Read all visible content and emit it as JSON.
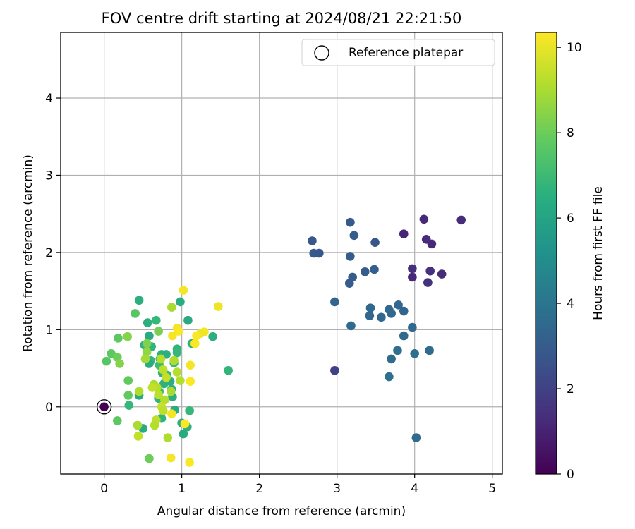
{
  "chart_data": {
    "type": "scatter",
    "title": "FOV centre drift starting at 2024/08/21 22:21:50",
    "xlabel": "Angular distance from reference (arcmin)",
    "ylabel": "Rotation from reference (arcmin)",
    "xlim": [
      -0.56,
      5.13
    ],
    "ylim": [
      -0.87,
      4.85
    ],
    "xticks": [
      0,
      1,
      2,
      3,
      4,
      5
    ],
    "yticks": [
      0,
      1,
      2,
      3,
      4
    ],
    "grid": true,
    "legend": {
      "position": "top-right",
      "entries": [
        {
          "label": "Reference platepar",
          "marker": "open-circle"
        }
      ]
    },
    "colorbar": {
      "label": "Hours from first FF file",
      "colormap": "viridis",
      "range": [
        0,
        10.35
      ],
      "ticks": [
        0,
        2,
        4,
        6,
        8,
        10
      ]
    },
    "reference_point": {
      "x": 0,
      "y": 0
    },
    "points": [
      {
        "x": 0.0,
        "y": 0.0,
        "c": 0.0
      },
      {
        "x": 4.12,
        "y": 2.43,
        "c": 1.2
      },
      {
        "x": 4.6,
        "y": 2.42,
        "c": 1.3
      },
      {
        "x": 3.86,
        "y": 2.24,
        "c": 1.1
      },
      {
        "x": 4.15,
        "y": 2.17,
        "c": 1.3
      },
      {
        "x": 4.22,
        "y": 2.11,
        "c": 1.2
      },
      {
        "x": 3.97,
        "y": 1.79,
        "c": 1.4
      },
      {
        "x": 4.2,
        "y": 1.76,
        "c": 1.5
      },
      {
        "x": 4.35,
        "y": 1.72,
        "c": 1.3
      },
      {
        "x": 3.97,
        "y": 1.68,
        "c": 1.2
      },
      {
        "x": 4.17,
        "y": 1.61,
        "c": 1.5
      },
      {
        "x": 2.97,
        "y": 0.47,
        "c": 2.0
      },
      {
        "x": 2.68,
        "y": 2.15,
        "c": 2.8
      },
      {
        "x": 3.17,
        "y": 2.39,
        "c": 2.9
      },
      {
        "x": 3.22,
        "y": 2.22,
        "c": 3.0
      },
      {
        "x": 3.49,
        "y": 2.13,
        "c": 2.8
      },
      {
        "x": 2.7,
        "y": 1.99,
        "c": 2.9
      },
      {
        "x": 2.77,
        "y": 1.99,
        "c": 2.8
      },
      {
        "x": 3.17,
        "y": 1.95,
        "c": 3.0
      },
      {
        "x": 3.48,
        "y": 1.78,
        "c": 3.1
      },
      {
        "x": 3.36,
        "y": 1.75,
        "c": 3.0
      },
      {
        "x": 3.2,
        "y": 1.68,
        "c": 3.0
      },
      {
        "x": 3.16,
        "y": 1.6,
        "c": 3.0
      },
      {
        "x": 2.97,
        "y": 1.36,
        "c": 3.3
      },
      {
        "x": 3.79,
        "y": 1.32,
        "c": 3.4
      },
      {
        "x": 3.43,
        "y": 1.28,
        "c": 3.5
      },
      {
        "x": 3.67,
        "y": 1.26,
        "c": 3.5
      },
      {
        "x": 3.86,
        "y": 1.24,
        "c": 3.3
      },
      {
        "x": 3.7,
        "y": 1.21,
        "c": 3.4
      },
      {
        "x": 3.42,
        "y": 1.18,
        "c": 3.5
      },
      {
        "x": 3.57,
        "y": 1.16,
        "c": 3.4
      },
      {
        "x": 3.18,
        "y": 1.05,
        "c": 3.6
      },
      {
        "x": 3.97,
        "y": 1.03,
        "c": 3.5
      },
      {
        "x": 3.86,
        "y": 0.92,
        "c": 3.6
      },
      {
        "x": 3.78,
        "y": 0.73,
        "c": 3.7
      },
      {
        "x": 4.19,
        "y": 0.73,
        "c": 3.6
      },
      {
        "x": 4.0,
        "y": 0.69,
        "c": 3.7
      },
      {
        "x": 3.7,
        "y": 0.62,
        "c": 3.6
      },
      {
        "x": 3.67,
        "y": 0.39,
        "c": 3.8
      },
      {
        "x": 4.02,
        "y": -0.4,
        "c": 3.6
      },
      {
        "x": 0.45,
        "y": 1.38,
        "c": 6.5
      },
      {
        "x": 0.98,
        "y": 1.36,
        "c": 6.4
      },
      {
        "x": 1.08,
        "y": 1.12,
        "c": 6.3
      },
      {
        "x": 0.56,
        "y": 1.09,
        "c": 6.5
      },
      {
        "x": 0.67,
        "y": 1.12,
        "c": 6.9
      },
      {
        "x": 0.58,
        "y": 0.92,
        "c": 6.3
      },
      {
        "x": 1.4,
        "y": 0.91,
        "c": 6.5
      },
      {
        "x": 0.52,
        "y": 0.8,
        "c": 6.6
      },
      {
        "x": 1.13,
        "y": 0.82,
        "c": 6.6
      },
      {
        "x": 0.61,
        "y": 0.78,
        "c": 6.7
      },
      {
        "x": 0.94,
        "y": 0.75,
        "c": 6.7
      },
      {
        "x": 0.74,
        "y": 0.68,
        "c": 6.6
      },
      {
        "x": 0.8,
        "y": 0.68,
        "c": 6.5
      },
      {
        "x": 0.94,
        "y": 0.7,
        "c": 6.9
      },
      {
        "x": 0.6,
        "y": 0.6,
        "c": 6.9
      },
      {
        "x": 0.72,
        "y": 0.62,
        "c": 6.6
      },
      {
        "x": 0.58,
        "y": 0.56,
        "c": 6.4
      },
      {
        "x": 0.71,
        "y": 0.54,
        "c": 7.1
      },
      {
        "x": 0.9,
        "y": 0.57,
        "c": 7.0
      },
      {
        "x": 1.6,
        "y": 0.47,
        "c": 6.8
      },
      {
        "x": 0.75,
        "y": 0.44,
        "c": 6.6
      },
      {
        "x": 0.81,
        "y": 0.41,
        "c": 6.9
      },
      {
        "x": 0.85,
        "y": 0.33,
        "c": 6.5
      },
      {
        "x": 0.77,
        "y": 0.3,
        "c": 6.6
      },
      {
        "x": 0.87,
        "y": 0.23,
        "c": 6.6
      },
      {
        "x": 0.71,
        "y": 0.2,
        "c": 6.9
      },
      {
        "x": 0.45,
        "y": 0.15,
        "c": 6.3
      },
      {
        "x": 0.88,
        "y": 0.13,
        "c": 6.5
      },
      {
        "x": 0.7,
        "y": 0.11,
        "c": 6.7
      },
      {
        "x": 0.32,
        "y": 0.02,
        "c": 6.9
      },
      {
        "x": 0.91,
        "y": -0.04,
        "c": 6.4
      },
      {
        "x": 1.1,
        "y": -0.05,
        "c": 6.9
      },
      {
        "x": 0.74,
        "y": -0.15,
        "c": 6.7
      },
      {
        "x": 1.0,
        "y": -0.21,
        "c": 6.5
      },
      {
        "x": 1.07,
        "y": -0.26,
        "c": 6.5
      },
      {
        "x": 0.5,
        "y": -0.28,
        "c": 6.4
      },
      {
        "x": 1.02,
        "y": -0.35,
        "c": 6.3
      },
      {
        "x": 0.18,
        "y": 0.89,
        "c": 7.7
      },
      {
        "x": 0.4,
        "y": 1.21,
        "c": 7.6
      },
      {
        "x": 0.3,
        "y": 0.91,
        "c": 8.4
      },
      {
        "x": 0.09,
        "y": 0.69,
        "c": 7.7
      },
      {
        "x": 0.17,
        "y": 0.64,
        "c": 8.0
      },
      {
        "x": 0.2,
        "y": 0.56,
        "c": 8.4
      },
      {
        "x": 0.03,
        "y": 0.59,
        "c": 7.6
      },
      {
        "x": 0.31,
        "y": 0.34,
        "c": 7.8
      },
      {
        "x": 0.31,
        "y": 0.15,
        "c": 7.8
      },
      {
        "x": 0.17,
        "y": -0.18,
        "c": 7.7
      },
      {
        "x": 0.58,
        "y": -0.67,
        "c": 8.0
      },
      {
        "x": 0.7,
        "y": 0.98,
        "c": 8.2
      },
      {
        "x": 0.55,
        "y": 0.71,
        "c": 8.6
      },
      {
        "x": 0.55,
        "y": 0.82,
        "c": 8.3
      },
      {
        "x": 0.87,
        "y": 1.29,
        "c": 9.0
      },
      {
        "x": 0.73,
        "y": 0.62,
        "c": 9.2
      },
      {
        "x": 0.9,
        "y": 0.6,
        "c": 9.1
      },
      {
        "x": 0.76,
        "y": 0.48,
        "c": 9.3
      },
      {
        "x": 0.94,
        "y": 0.45,
        "c": 9.2
      },
      {
        "x": 0.8,
        "y": 0.38,
        "c": 9.4
      },
      {
        "x": 0.98,
        "y": 0.34,
        "c": 9.2
      },
      {
        "x": 0.64,
        "y": 0.29,
        "c": 9.0
      },
      {
        "x": 0.68,
        "y": 0.25,
        "c": 9.2
      },
      {
        "x": 0.62,
        "y": 0.25,
        "c": 9.4
      },
      {
        "x": 0.86,
        "y": 0.2,
        "c": 9.0
      },
      {
        "x": 0.45,
        "y": 0.2,
        "c": 9.1
      },
      {
        "x": 0.7,
        "y": 0.16,
        "c": 9.3
      },
      {
        "x": 0.78,
        "y": 0.09,
        "c": 9.2
      },
      {
        "x": 0.74,
        "y": 0.0,
        "c": 9.5
      },
      {
        "x": 0.76,
        "y": -0.05,
        "c": 9.3
      },
      {
        "x": 0.67,
        "y": -0.17,
        "c": 9.3
      },
      {
        "x": 0.43,
        "y": -0.24,
        "c": 9.0
      },
      {
        "x": 0.65,
        "y": -0.24,
        "c": 9.2
      },
      {
        "x": 0.44,
        "y": -0.38,
        "c": 9.4
      },
      {
        "x": 0.82,
        "y": -0.4,
        "c": 9.1
      },
      {
        "x": 0.53,
        "y": 0.62,
        "c": 8.9
      },
      {
        "x": 1.02,
        "y": 1.51,
        "c": 10.2
      },
      {
        "x": 1.47,
        "y": 1.3,
        "c": 10.1
      },
      {
        "x": 0.94,
        "y": 1.02,
        "c": 10.2
      },
      {
        "x": 0.96,
        "y": 0.98,
        "c": 10.3
      },
      {
        "x": 1.29,
        "y": 0.97,
        "c": 10.2
      },
      {
        "x": 1.24,
        "y": 0.95,
        "c": 10.1
      },
      {
        "x": 1.19,
        "y": 0.92,
        "c": 10.3
      },
      {
        "x": 0.88,
        "y": 0.92,
        "c": 10.2
      },
      {
        "x": 1.17,
        "y": 0.82,
        "c": 10.3
      },
      {
        "x": 1.11,
        "y": 0.54,
        "c": 10.2
      },
      {
        "x": 1.11,
        "y": 0.33,
        "c": 10.3
      },
      {
        "x": 0.87,
        "y": -0.09,
        "c": 10.2
      },
      {
        "x": 1.04,
        "y": -0.22,
        "c": 10.3
      },
      {
        "x": 0.86,
        "y": -0.66,
        "c": 10.2
      },
      {
        "x": 1.1,
        "y": -0.72,
        "c": 10.3
      }
    ]
  }
}
